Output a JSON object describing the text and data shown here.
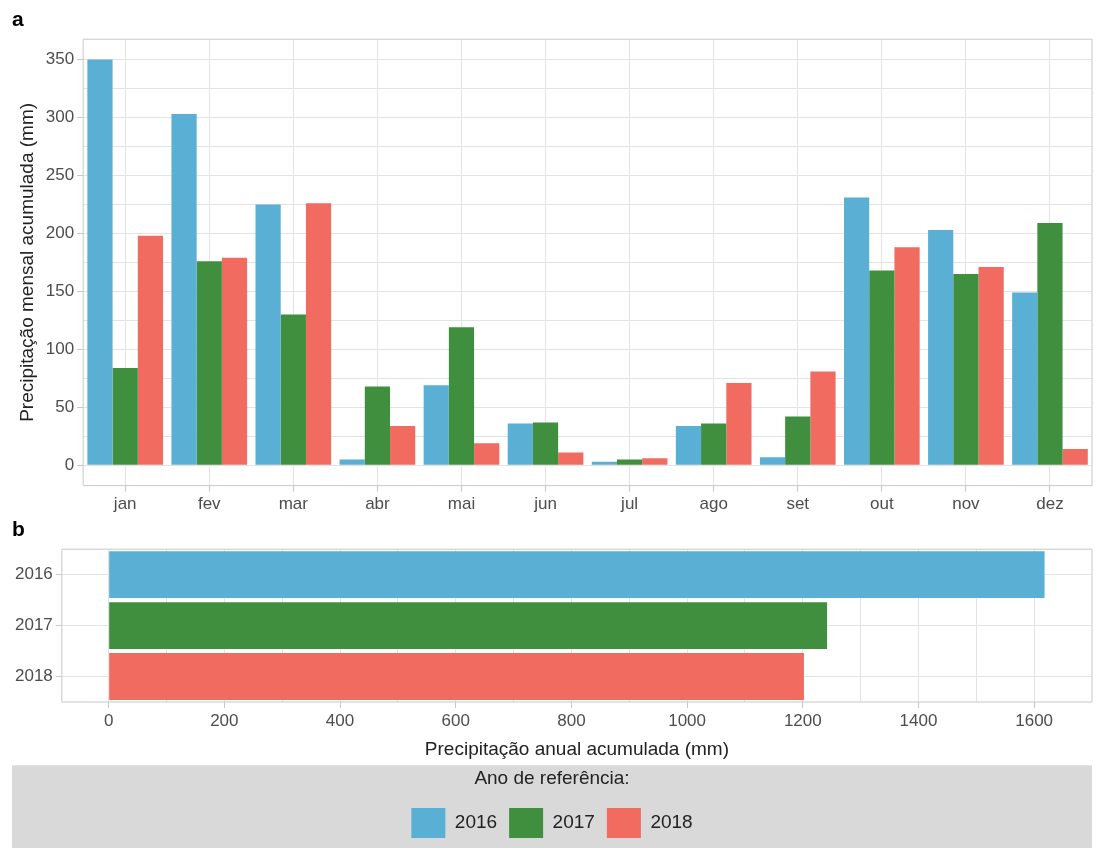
{
  "chart_data": [
    {
      "type": "bar",
      "title": "a",
      "ylabel": "Precipitação mensal acumulada (mm)",
      "categories": [
        "jan",
        "fev",
        "mar",
        "abr",
        "mai",
        "jun",
        "jul",
        "ago",
        "set",
        "out",
        "nov",
        "dez"
      ],
      "series": [
        {
          "color": "#5aafd4",
          "values": [
            350,
            303,
            225,
            5,
            69,
            36,
            3,
            34,
            7,
            231,
            203,
            149
          ]
        },
        {
          "color": "#3f8f3f",
          "values": [
            84,
            176,
            130,
            68,
            119,
            37,
            5,
            36,
            42,
            168,
            165,
            209
          ]
        },
        {
          "color": "#f26b60",
          "values": [
            198,
            179,
            226,
            34,
            19,
            11,
            6,
            71,
            81,
            188,
            171,
            14
          ]
        }
      ],
      "ylim": [
        -17.5,
        367.5
      ],
      "yticks": [
        0,
        {
          "value": 25,
          "label": null
        },
        50,
        {
          "value": 75,
          "label": null
        },
        100,
        {
          "value": 125,
          "label": null
        },
        150,
        {
          "value": 175,
          "label": null
        },
        200,
        {
          "value": 225,
          "label": null
        },
        250,
        {
          "value": 275,
          "label": null
        },
        300,
        {
          "value": 325,
          "label": null
        },
        350
      ],
      "grid": true
    },
    {
      "type": "bar",
      "title": "b",
      "xlabel": "Precipitação anual acumulada (mm)",
      "orientation": "horizontal",
      "stacked": true,
      "categories": [
        "2016",
        "2017",
        "2018"
      ],
      "series": [
        {
          "name": "2016",
          "color": "#5aafd4",
          "values": [
            1618,
            null,
            null
          ]
        },
        {
          "name": "2017",
          "color": "#3f8f3f",
          "values": [
            null,
            1242,
            null
          ]
        },
        {
          "name": "2018",
          "color": "#f26b60",
          "values": [
            null,
            null,
            1202
          ]
        }
      ],
      "xlim": [
        -81,
        1700
      ],
      "xticks": [
        0,
        {
          "value": 100,
          "label": null
        },
        200,
        {
          "value": 300,
          "label": null
        },
        400,
        {
          "value": 500,
          "label": null
        },
        600,
        {
          "value": 700,
          "label": null
        },
        800,
        {
          "value": 900,
          "label": null
        },
        1000,
        {
          "value": 1100,
          "label": null
        },
        1200,
        {
          "value": 1300,
          "label": null
        },
        1400,
        {
          "value": 1500,
          "label": null
        },
        1600
      ],
      "grid": true,
      "legend": "bottom",
      "legend_title": "Ano de referência:"
    }
  ]
}
